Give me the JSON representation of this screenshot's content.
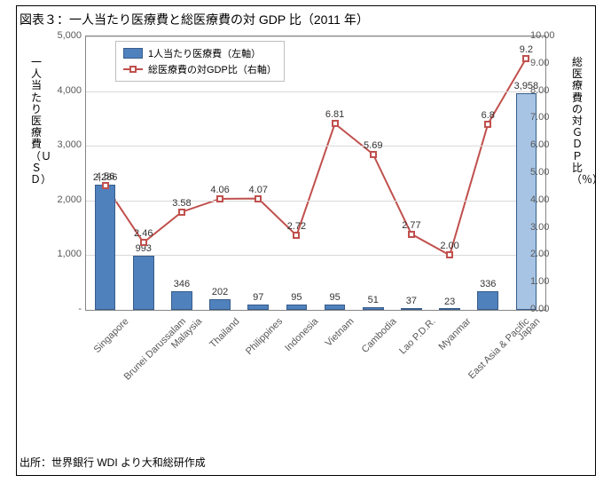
{
  "title": "図表３：一人当たり医療費と総医療費の対 GDP 比（2011 年）",
  "source": "出所：世界銀行 WDI より大和総研作成",
  "axis_title_left": "一人当たり医療費（ＵＳＤ）",
  "axis_title_right": "総医療費の対ＧＤＰ比（％）",
  "legend": {
    "bar": "1人当たり医療費（左軸）",
    "line": "総医療費の対GDP比（右軸）"
  },
  "y_left": {
    "min": 0,
    "max": 5000,
    "ticks": [
      "-",
      "1,000",
      "2,000",
      "3,000",
      "4,000",
      "5,000"
    ],
    "tick_vals": [
      0,
      1000,
      2000,
      3000,
      4000,
      5000
    ]
  },
  "y_right": {
    "min": 0,
    "max": 10,
    "ticks": [
      "0.00",
      "1.00",
      "2.00",
      "3.00",
      "4.00",
      "5.00",
      "6.00",
      "7.00",
      "8.00",
      "9.00",
      "10.00"
    ],
    "tick_vals": [
      0,
      1,
      2,
      3,
      4,
      5,
      6,
      7,
      8,
      9,
      10
    ]
  },
  "categories": [
    "Singapore",
    "Brunei Darussalam",
    "Malaysia",
    "Thailand",
    "Philippines",
    "Indonesia",
    "Vietnam",
    "Cambodia",
    "Lao P.D.R.",
    "Myanmar",
    "East Asia & Pacific",
    "Japan"
  ],
  "bars": {
    "values": [
      2286,
      993,
      346,
      202,
      97,
      95,
      95,
      51,
      37,
      23,
      336,
      3958
    ],
    "labels": [
      "2,286",
      "993",
      "346",
      "202",
      "97",
      "95",
      "95",
      "51",
      "37",
      "23",
      "336",
      "3,958"
    ],
    "colors": [
      "#4f81bd",
      "#4f81bd",
      "#4f81bd",
      "#4f81bd",
      "#4f81bd",
      "#4f81bd",
      "#4f81bd",
      "#4f81bd",
      "#4f81bd",
      "#4f81bd",
      "#4f81bd",
      "#a7c4e4"
    ],
    "border": "#385d8a",
    "width_frac": 0.55
  },
  "line": {
    "values": [
      4.56,
      2.46,
      3.58,
      4.06,
      4.07,
      2.72,
      6.81,
      5.69,
      2.77,
      2.0,
      6.8,
      9.2
    ],
    "labels": [
      "4.56",
      "2.46",
      "3.58",
      "4.06",
      "4.07",
      "2.72",
      "6.81",
      "5.69",
      "2.77",
      "2.00",
      "6.8",
      "9.2"
    ],
    "color": "#c0504d",
    "marker_border": "#c0504d",
    "stroke_width": 2
  },
  "style": {
    "grid_color": "#d9d9d9",
    "plot_border": "#868686",
    "tick_font_color": "#595959",
    "tick_font_size": 11
  }
}
